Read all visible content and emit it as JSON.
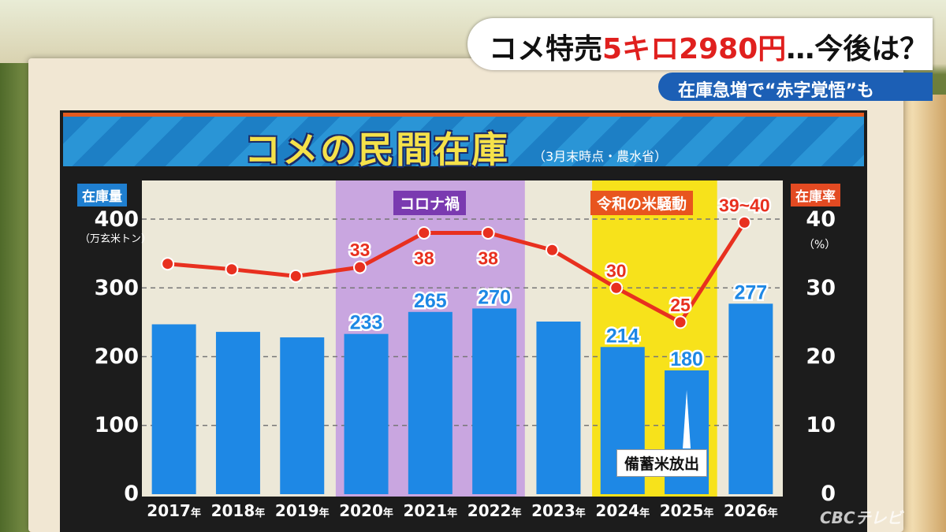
{
  "banner": {
    "prefix": "コメ特売",
    "highlight": "5キロ2980円",
    "suffix": "…今後は？",
    "subheadline": "在庫急増で“赤字覚悟”も"
  },
  "logo_text": "CBCテレビ",
  "chart_data": {
    "type": "bar",
    "title": "コメの民間在庫",
    "subtitle": "（3月末時点・農水省）",
    "categories": [
      "2017年",
      "2018年",
      "2019年",
      "2020年",
      "2021年",
      "2022年",
      "2023年",
      "2024年",
      "2025年",
      "2026年"
    ],
    "series": [
      {
        "name": "在庫量",
        "type": "bar",
        "axis": "left",
        "values": [
          247,
          236,
          228,
          233,
          265,
          270,
          251,
          214,
          180,
          277
        ],
        "labels": [
          "",
          "",
          "",
          "233",
          "265",
          "270",
          "",
          "214",
          "180",
          "277"
        ],
        "color": "#1e88e5"
      },
      {
        "name": "在庫率",
        "type": "line",
        "axis": "right",
        "values": [
          33.5,
          32.7,
          31.7,
          33,
          38,
          38,
          35.5,
          30,
          25,
          39.5
        ],
        "labels": [
          "",
          "",
          "",
          "33",
          "38",
          "38",
          "",
          "30",
          "25",
          "39~40"
        ],
        "color": "#e8301f"
      }
    ],
    "left_axis": {
      "label": "在庫量",
      "unit": "（万玄米トン）",
      "range": [
        0,
        400
      ],
      "ticks": [
        "0",
        "100",
        "200",
        "300",
        "400"
      ]
    },
    "right_axis": {
      "label": "在庫率",
      "unit": "（%）",
      "range": [
        0,
        40
      ],
      "ticks": [
        "0",
        "10",
        "20",
        "30",
        "40"
      ]
    },
    "shaded_periods": [
      {
        "label": "コロナ禍",
        "from": "2020年",
        "to": "2022年",
        "color": "#c9a6e0"
      },
      {
        "label": "令和の米騒動",
        "from": "2024年",
        "to": "2025年",
        "color": "#f7e21b"
      }
    ],
    "annotation": {
      "label": "備蓄米放出",
      "at": "2025年"
    },
    "grid": "dashed"
  }
}
